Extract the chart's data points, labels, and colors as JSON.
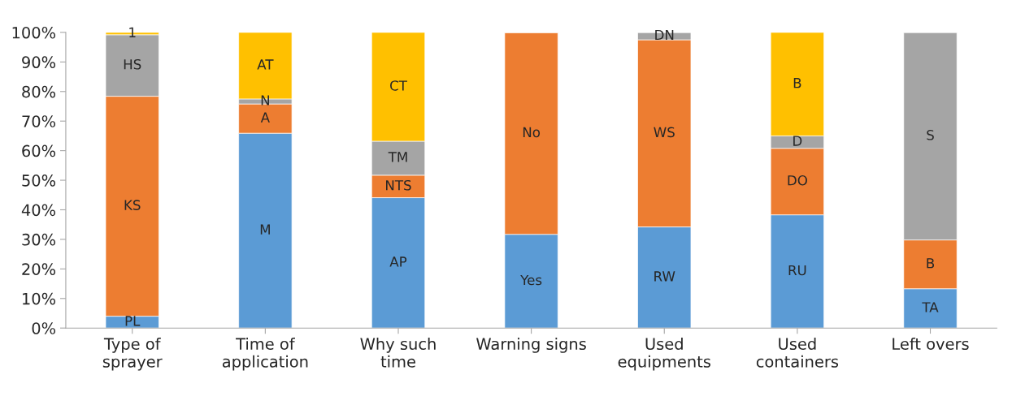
{
  "chart_data": {
    "type": "bar",
    "stacked": true,
    "categories": [
      "Type of\nsprayer",
      "Time of\napplication",
      "Why such\ntime",
      "Warning signs",
      "Used\nequipments",
      "Used\ncontainers",
      "Left overs"
    ],
    "series": [
      {
        "color": "#5b9bd5",
        "values": [
          4.0,
          65.9,
          44.1,
          31.7,
          34.2,
          38.3,
          13.3
        ],
        "value_labels": [
          "PL",
          "M",
          "AP",
          "Yes",
          "RW",
          "RU",
          "TA"
        ]
      },
      {
        "color": "#ed7d31",
        "values": [
          74.4,
          9.9,
          7.6,
          68.3,
          63.3,
          22.5,
          16.5
        ],
        "value_labels": [
          "KS",
          "A",
          "NTS",
          "No",
          "WS",
          "DO",
          "B"
        ]
      },
      {
        "color": "#a5a5a5",
        "values": [
          20.8,
          1.7,
          11.5,
          null,
          2.5,
          4.2,
          70.2
        ],
        "value_labels": [
          "HS",
          "N",
          "TM",
          null,
          "DN",
          "D",
          "S"
        ]
      },
      {
        "color": "#ffc000",
        "values": [
          0.8,
          22.5,
          36.8,
          null,
          null,
          35.0,
          null
        ],
        "value_labels": [
          "1",
          "AT",
          "CT",
          null,
          null,
          "B",
          null
        ]
      }
    ],
    "ylim": [
      0,
      100
    ],
    "yticks": [
      {
        "value": 0,
        "label": "0%"
      },
      {
        "value": 10,
        "label": "10%"
      },
      {
        "value": 20,
        "label": "20%"
      },
      {
        "value": 30,
        "label": "30%"
      },
      {
        "value": 40,
        "label": "40%"
      },
      {
        "value": 50,
        "label": "50%"
      },
      {
        "value": 60,
        "label": "60%"
      },
      {
        "value": 70,
        "label": "70%"
      },
      {
        "value": 80,
        "label": "80%"
      },
      {
        "value": 90,
        "label": "90%"
      },
      {
        "value": 100,
        "label": "100%"
      }
    ],
    "grid": false,
    "legend": false
  }
}
